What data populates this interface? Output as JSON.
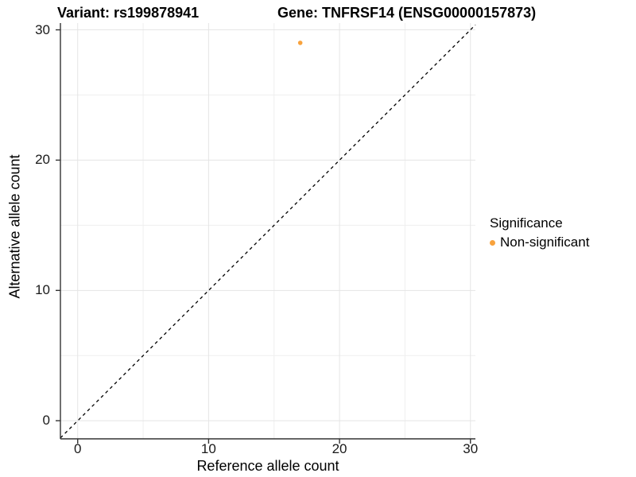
{
  "chart_data": {
    "type": "scatter",
    "title_left": "Variant: rs199878941",
    "title_right": "Gene: TNFRSF14 (ENSG00000157873)",
    "xlabel": "Reference allele count",
    "ylabel": "Alternative allele count",
    "xlim": [
      -1.32,
      30.38
    ],
    "ylim": [
      -1.39,
      30.52
    ],
    "x_ticks": [
      0,
      10,
      20,
      30
    ],
    "y_ticks": [
      0,
      10,
      20,
      30
    ],
    "x_minor": [
      5,
      15,
      25
    ],
    "y_minor": [
      5,
      15,
      25
    ],
    "grid": true,
    "identity_line": {
      "slope": 1,
      "intercept": 0,
      "style": "dashed",
      "color": "#000000"
    },
    "series": [
      {
        "name": "Non-significant",
        "color": "#F8A23C",
        "points": [
          {
            "x": 17,
            "y": 29
          }
        ]
      }
    ],
    "legend": {
      "title": "Significance",
      "position": "right",
      "items": [
        {
          "label": "Non-significant",
          "color": "#F8A23C"
        }
      ]
    }
  },
  "colors": {
    "background": "#FFFFFF",
    "panel_background": "#FFFFFF",
    "grid_major": "#E5E5E5",
    "grid_minor": "#EFEFEF",
    "axis_line": "#333333",
    "tick_mark": "#333333",
    "text": "#000000",
    "point": "#F8A23C"
  }
}
